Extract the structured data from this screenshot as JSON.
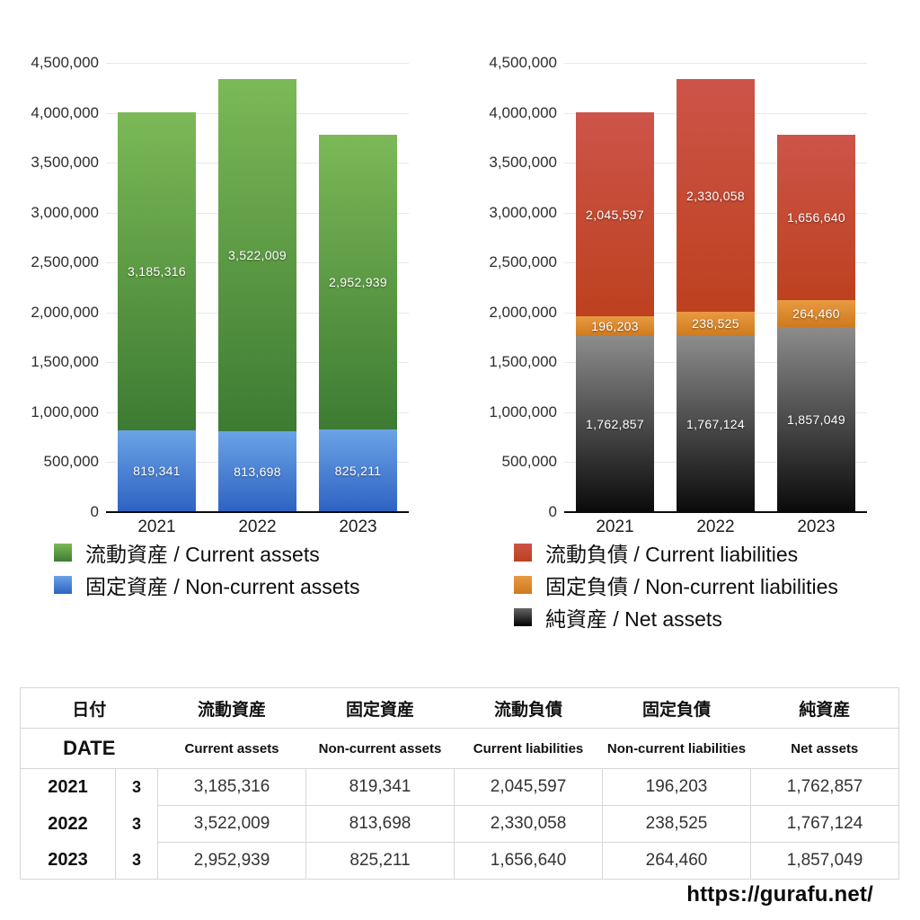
{
  "chart_data": [
    {
      "type": "bar",
      "stacked": true,
      "title": "",
      "xlabel": "",
      "ylabel": "",
      "categories": [
        "2021",
        "2022",
        "2023"
      ],
      "ylim": [
        0,
        4500000
      ],
      "y_step": 500000,
      "grid": true,
      "legend_position": "bottom-left",
      "y_ticks": [
        "4,500,000",
        "4,000,000",
        "3,500,000",
        "3,000,000",
        "2,500,000",
        "2,000,000",
        "1,500,000",
        "1,000,000",
        "500,000",
        "0"
      ],
      "series": [
        {
          "name": "固定資産 / Non-current assets",
          "values": [
            819341,
            813698,
            825211
          ],
          "labels": [
            "819,341",
            "813,698",
            "825,211"
          ],
          "colors": [
            "#6ba3e6",
            "#2e62c2"
          ]
        },
        {
          "name": "流動資産 / Current assets",
          "values": [
            3185316,
            3522009,
            2952939
          ],
          "labels": [
            "3,185,316",
            "3,522,009",
            "2,952,939"
          ],
          "colors": [
            "#7cb957",
            "#3d7b33"
          ]
        }
      ],
      "legend": [
        {
          "label": "流動資産 / Current assets",
          "colors": [
            "#7cb957",
            "#3d7b33"
          ]
        },
        {
          "label": "固定資産 / Non-current assets",
          "colors": [
            "#6ba3e6",
            "#2e62c2"
          ]
        }
      ]
    },
    {
      "type": "bar",
      "stacked": true,
      "title": "",
      "xlabel": "",
      "ylabel": "",
      "categories": [
        "2021",
        "2022",
        "2023"
      ],
      "ylim": [
        0,
        4500000
      ],
      "y_step": 500000,
      "grid": true,
      "legend_position": "bottom-left",
      "y_ticks": [
        "4,500,000",
        "4,000,000",
        "3,500,000",
        "3,000,000",
        "2,500,000",
        "2,000,000",
        "1,500,000",
        "1,000,000",
        "500,000",
        "0"
      ],
      "series": [
        {
          "name": "純資産 / Net assets",
          "values": [
            1762857,
            1767124,
            1857049
          ],
          "labels": [
            "1,762,857",
            "1,767,124",
            "1,857,049"
          ],
          "colors": [
            "#8c8c8c",
            "#0a0a0a"
          ]
        },
        {
          "name": "固定負債 / Non-current liabilities",
          "values": [
            196203,
            238525,
            264460
          ],
          "labels": [
            "196,203",
            "238,525",
            "264,460"
          ],
          "colors": [
            "#e89a42",
            "#cf7a1e"
          ]
        },
        {
          "name": "流動負債 / Current liabilities",
          "values": [
            2045597,
            2330058,
            1656640
          ],
          "labels": [
            "2,045,597",
            "2,330,058",
            "1,656,640"
          ],
          "colors": [
            "#cd5449",
            "#bd411f"
          ]
        }
      ],
      "legend": [
        {
          "label": "流動負債 / Current liabilities",
          "colors": [
            "#cd5449",
            "#bd411f"
          ]
        },
        {
          "label": "固定負債 / Non-current liabilities",
          "colors": [
            "#e89a42",
            "#cf7a1e"
          ]
        },
        {
          "label": "純資産 / Net assets",
          "colors": [
            "#666666",
            "#000000"
          ]
        }
      ]
    }
  ],
  "table": {
    "header_row1": [
      "日付",
      "流動資産",
      "固定資産",
      "流動負債",
      "固定負債",
      "純資産"
    ],
    "header_row2": [
      "DATE",
      "Current assets",
      "Non-current assets",
      "Current liabilities",
      "Non-current liabilities",
      "Net assets"
    ],
    "rows": [
      {
        "year": "2021",
        "month": "3",
        "values": [
          "3,185,316",
          "819,341",
          "2,045,597",
          "196,203",
          "1,762,857"
        ]
      },
      {
        "year": "2022",
        "month": "3",
        "values": [
          "3,522,009",
          "813,698",
          "2,330,058",
          "238,525",
          "1,767,124"
        ]
      },
      {
        "year": "2023",
        "month": "3",
        "values": [
          "2,952,939",
          "825,211",
          "1,656,640",
          "264,460",
          "1,857,049"
        ]
      }
    ]
  },
  "footer": {
    "url": "https://gurafu.net/"
  }
}
